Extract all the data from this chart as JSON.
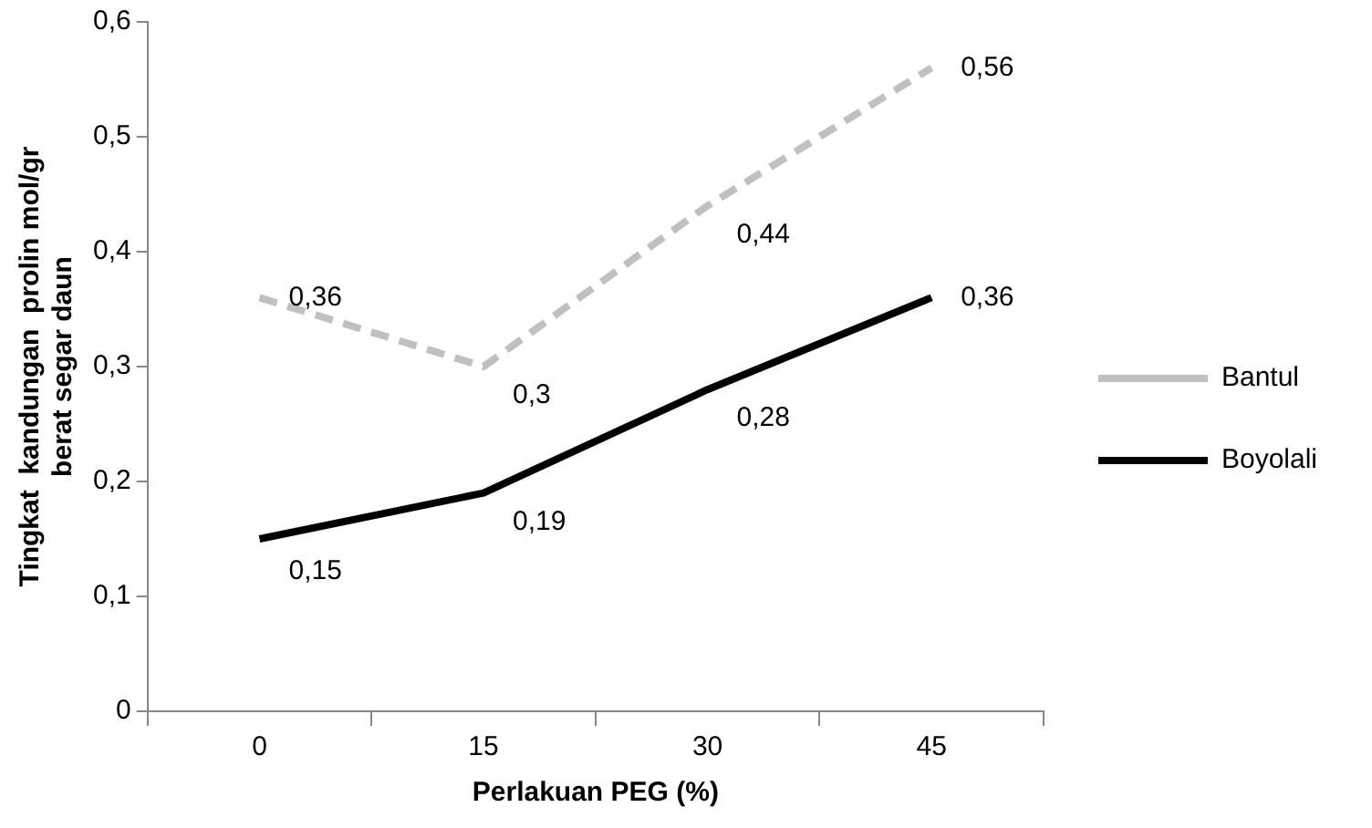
{
  "chart_data": {
    "type": "line",
    "xlabel": "Perlakuan PEG (%)",
    "ylabel": "Tingkat  kandungan  prolin mol/gr\nberat segar daun",
    "categories": [
      "0",
      "15",
      "30",
      "45"
    ],
    "series": [
      {
        "name": "Bantul",
        "color": "#c0c0c0",
        "line_style": "dashed",
        "values": [
          0.36,
          0.3,
          0.44,
          0.56
        ],
        "value_labels": [
          "0,36",
          "0,3",
          "0,44",
          "0,56"
        ]
      },
      {
        "name": "Boyolali",
        "color": "#000000",
        "line_style": "solid",
        "values": [
          0.15,
          0.19,
          0.28,
          0.36
        ],
        "value_labels": [
          "0,15",
          "0,19",
          "0,28",
          "0,36"
        ]
      }
    ],
    "ylim": [
      0,
      0.6
    ],
    "yticks": [
      {
        "value": 0,
        "label": "0"
      },
      {
        "value": 0.1,
        "label": "0,1"
      },
      {
        "value": 0.2,
        "label": "0,2"
      },
      {
        "value": 0.3,
        "label": "0,3"
      },
      {
        "value": 0.4,
        "label": "0,4"
      },
      {
        "value": 0.5,
        "label": "0,5"
      },
      {
        "value": 0.6,
        "label": "0,6"
      }
    ],
    "grid": false,
    "legend": "right",
    "marker": "none"
  }
}
